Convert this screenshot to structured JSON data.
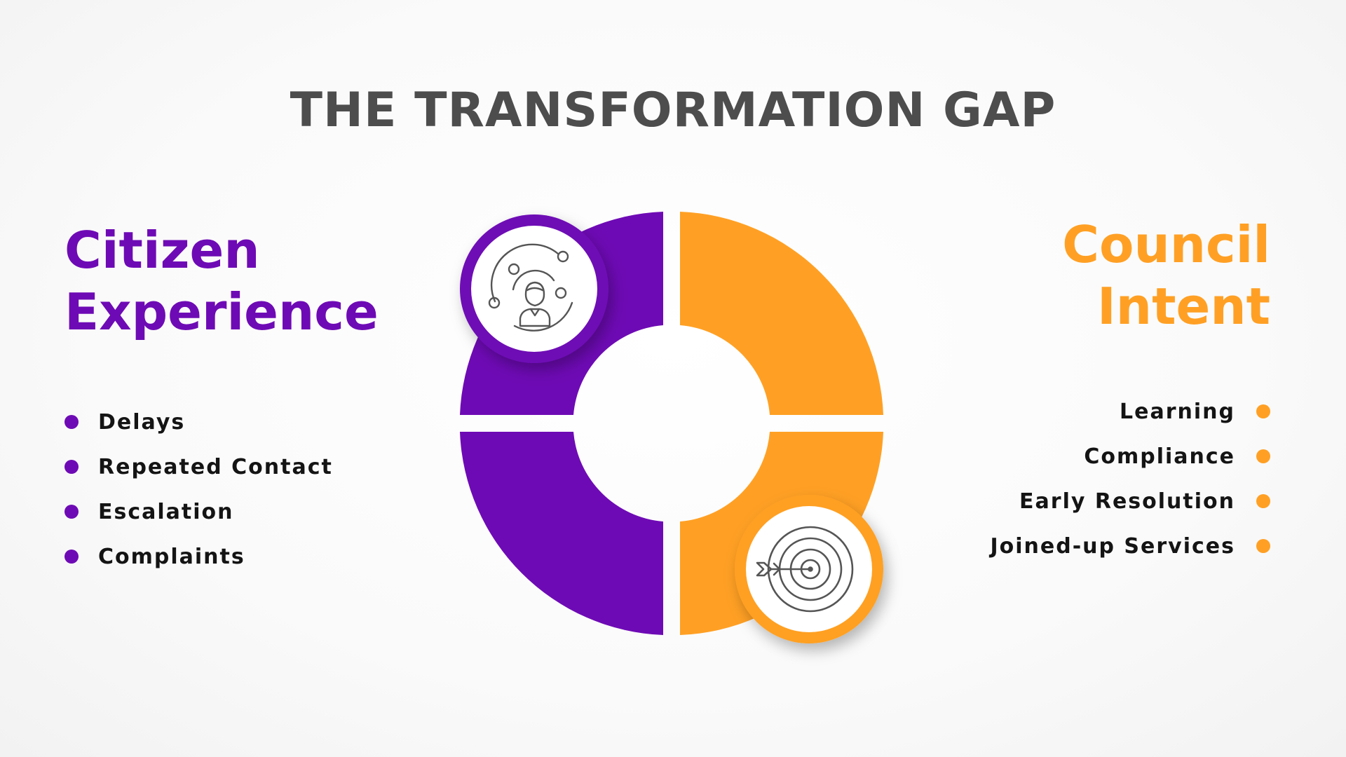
{
  "title": "THE TRANSFORMATION GAP",
  "colors": {
    "citizen": "#6e0ab5",
    "council": "#ffa024",
    "title": "#4d4d4d",
    "list_text": "#141414"
  },
  "left": {
    "heading_line1": "Citizen",
    "heading_line2": "Experience",
    "icon": "person-orbit-icon",
    "items": [
      "Delays",
      "Repeated Contact",
      "Escalation",
      "Complaints"
    ]
  },
  "right": {
    "heading_line1": "Council",
    "heading_line2": "Intent",
    "icon": "target-arrow-icon",
    "items": [
      "Learning",
      "Compliance",
      "Early Resolution",
      "Joined-up Services"
    ]
  }
}
